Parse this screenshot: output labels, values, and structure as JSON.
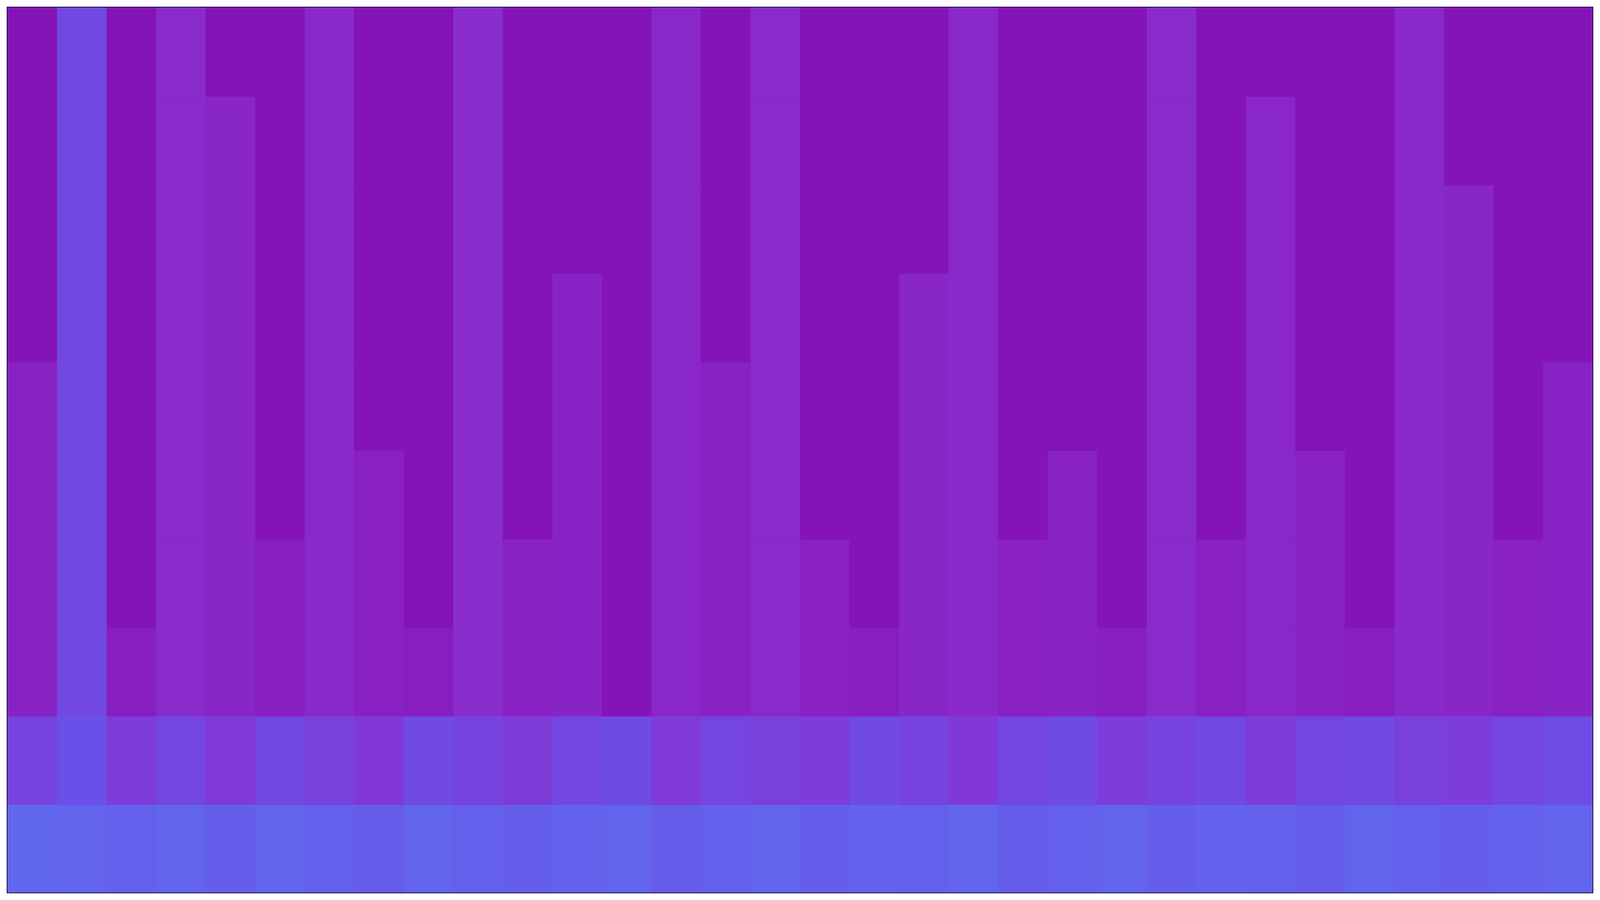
{
  "chart_data": {
    "type": "heatmap",
    "tick_labels": false,
    "grid": false,
    "xlim": [
      0,
      32
    ],
    "ylim": [
      0,
      10
    ],
    "zlim": [
      0,
      1
    ],
    "cells": [
      [
        0.62,
        0.6,
        0.58,
        0.6,
        0.57,
        0.6,
        0.58,
        0.56,
        0.6,
        0.58,
        0.57,
        0.59,
        0.6,
        0.56,
        0.58,
        0.6,
        0.57,
        0.59,
        0.58,
        0.6,
        0.56,
        0.58,
        0.6,
        0.57,
        0.59,
        0.58,
        0.56,
        0.6,
        0.58,
        0.57,
        0.59,
        0.6
      ],
      [
        0.42,
        0.5,
        0.38,
        0.44,
        0.36,
        0.45,
        0.4,
        0.35,
        0.46,
        0.42,
        0.37,
        0.44,
        0.47,
        0.36,
        0.43,
        0.4,
        0.38,
        0.46,
        0.42,
        0.35,
        0.44,
        0.47,
        0.38,
        0.42,
        0.45,
        0.37,
        0.43,
        0.46,
        0.4,
        0.38,
        0.44,
        0.48
      ],
      [
        0.22,
        0.45,
        0.2,
        0.27,
        0.24,
        0.2,
        0.26,
        0.21,
        0.2,
        0.28,
        0.22,
        0.23,
        0.12,
        0.25,
        0.22,
        0.27,
        0.21,
        0.2,
        0.24,
        0.26,
        0.21,
        0.22,
        0.2,
        0.27,
        0.21,
        0.25,
        0.22,
        0.2,
        0.26,
        0.24,
        0.21,
        0.23
      ],
      [
        0.22,
        0.45,
        0.12,
        0.27,
        0.24,
        0.2,
        0.26,
        0.21,
        0.12,
        0.28,
        0.22,
        0.23,
        0.12,
        0.25,
        0.22,
        0.27,
        0.21,
        0.12,
        0.24,
        0.26,
        0.21,
        0.22,
        0.12,
        0.27,
        0.21,
        0.25,
        0.22,
        0.12,
        0.26,
        0.24,
        0.21,
        0.23
      ],
      [
        0.22,
        0.45,
        0.12,
        0.27,
        0.24,
        0.12,
        0.26,
        0.21,
        0.12,
        0.28,
        0.12,
        0.23,
        0.12,
        0.25,
        0.22,
        0.27,
        0.12,
        0.12,
        0.24,
        0.26,
        0.12,
        0.22,
        0.12,
        0.27,
        0.12,
        0.25,
        0.22,
        0.12,
        0.26,
        0.24,
        0.12,
        0.23
      ],
      [
        0.22,
        0.45,
        0.12,
        0.27,
        0.24,
        0.12,
        0.26,
        0.12,
        0.12,
        0.28,
        0.12,
        0.23,
        0.12,
        0.25,
        0.22,
        0.27,
        0.12,
        0.12,
        0.24,
        0.26,
        0.12,
        0.12,
        0.12,
        0.27,
        0.12,
        0.25,
        0.12,
        0.12,
        0.26,
        0.24,
        0.12,
        0.23
      ],
      [
        0.12,
        0.45,
        0.12,
        0.27,
        0.24,
        0.12,
        0.26,
        0.12,
        0.12,
        0.28,
        0.12,
        0.23,
        0.12,
        0.25,
        0.12,
        0.27,
        0.12,
        0.12,
        0.24,
        0.26,
        0.12,
        0.12,
        0.12,
        0.27,
        0.12,
        0.25,
        0.12,
        0.12,
        0.26,
        0.24,
        0.12,
        0.12
      ],
      [
        0.12,
        0.45,
        0.12,
        0.27,
        0.24,
        0.12,
        0.26,
        0.12,
        0.12,
        0.28,
        0.12,
        0.12,
        0.12,
        0.25,
        0.12,
        0.27,
        0.12,
        0.12,
        0.12,
        0.26,
        0.12,
        0.12,
        0.12,
        0.27,
        0.12,
        0.25,
        0.12,
        0.12,
        0.26,
        0.24,
        0.12,
        0.12
      ],
      [
        0.12,
        0.45,
        0.12,
        0.27,
        0.24,
        0.12,
        0.26,
        0.12,
        0.12,
        0.28,
        0.12,
        0.12,
        0.12,
        0.25,
        0.12,
        0.27,
        0.12,
        0.12,
        0.12,
        0.26,
        0.12,
        0.12,
        0.12,
        0.27,
        0.12,
        0.25,
        0.12,
        0.12,
        0.26,
        0.12,
        0.12,
        0.12
      ],
      [
        0.12,
        0.45,
        0.12,
        0.27,
        0.12,
        0.12,
        0.26,
        0.12,
        0.12,
        0.28,
        0.12,
        0.12,
        0.12,
        0.25,
        0.12,
        0.27,
        0.12,
        0.12,
        0.12,
        0.26,
        0.12,
        0.12,
        0.12,
        0.27,
        0.12,
        0.12,
        0.12,
        0.12,
        0.26,
        0.12,
        0.12,
        0.12
      ]
    ]
  }
}
